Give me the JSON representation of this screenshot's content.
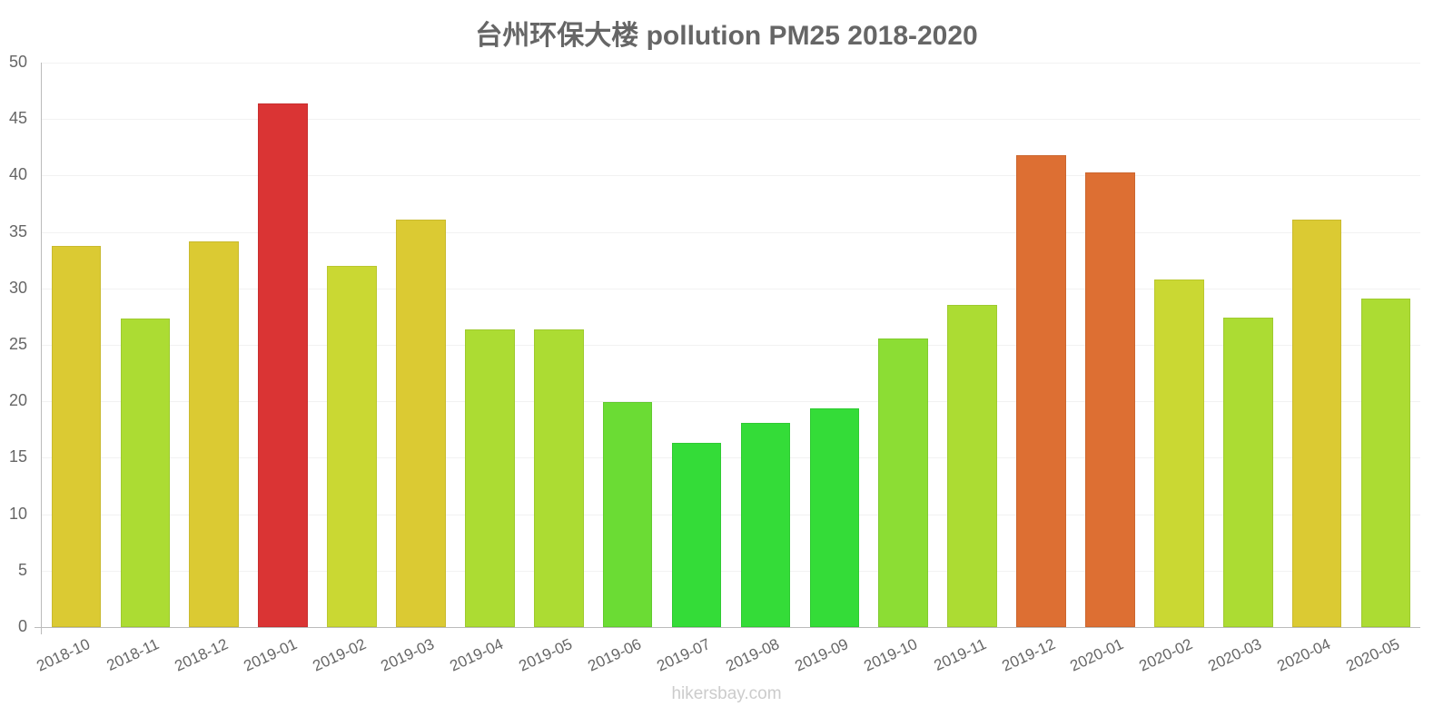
{
  "header": {
    "title": "台州环保大楼 pollution PM25 2018-2020"
  },
  "footer": {
    "watermark": "hikersbay.com"
  },
  "chart_data": {
    "type": "bar",
    "title": "台州环保大楼 pollution PM25 2018-2020",
    "xlabel": "",
    "ylabel": "",
    "ylim": [
      0,
      50
    ],
    "yticks": [
      0,
      5,
      10,
      15,
      20,
      25,
      30,
      35,
      40,
      45,
      50
    ],
    "grid": true,
    "legend": null,
    "categories": [
      "2018-10",
      "2018-11",
      "2018-12",
      "2019-01",
      "2019-02",
      "2019-03",
      "2019-04",
      "2019-05",
      "2019-06",
      "2019-07",
      "2019-08",
      "2019-09",
      "2019-10",
      "2019-11",
      "2019-12",
      "2020-01",
      "2020-02",
      "2020-03",
      "2020-04",
      "2020-05"
    ],
    "values": [
      33.8,
      27.3,
      34.2,
      46.4,
      32.0,
      36.1,
      26.4,
      26.4,
      19.9,
      16.3,
      18.1,
      19.4,
      25.6,
      28.5,
      41.8,
      40.3,
      30.8,
      27.4,
      36.1,
      29.1
    ],
    "colors": [
      "#dbca33",
      "#acdc33",
      "#dbca33",
      "#da3434",
      "#cad833",
      "#dbca33",
      "#acdc33",
      "#acdc33",
      "#6bdc34",
      "#34dc38",
      "#34dc38",
      "#34dc38",
      "#8cdd34",
      "#acdc33",
      "#dd6f33",
      "#dd6f33",
      "#cad833",
      "#acdc33",
      "#dbca33",
      "#acdc33"
    ]
  }
}
